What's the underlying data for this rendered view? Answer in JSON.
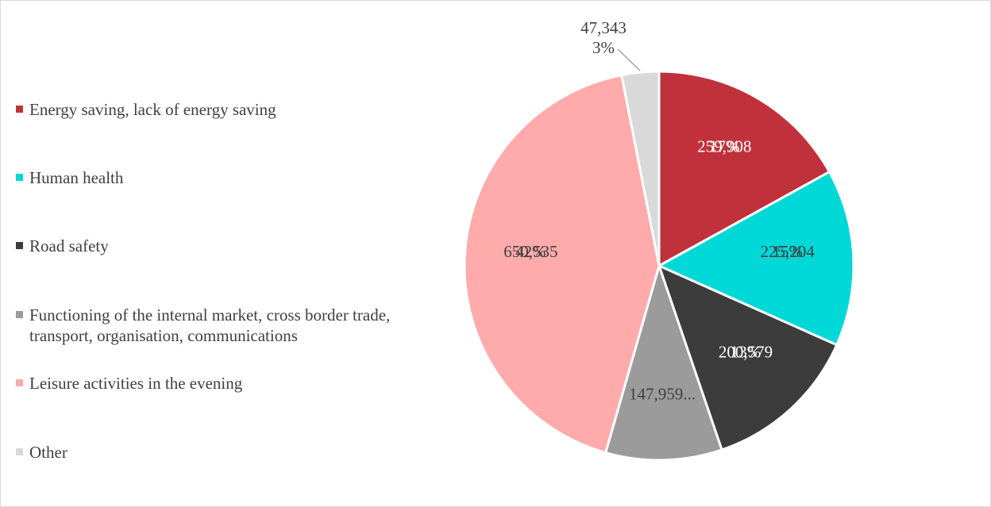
{
  "chart_data": {
    "type": "pie",
    "title": "",
    "legend_position": "left",
    "slices": [
      {
        "name": "Energy saving, lack of energy saving",
        "value": 259908,
        "value_label": "259,908",
        "pct_label": "17%",
        "color": "#c0313b",
        "label_color": "#ffffff"
      },
      {
        "name": "Human health",
        "value": 225204,
        "value_label": "225,204",
        "pct_label": "15%",
        "color": "#00d8d8",
        "label_color": "#404040"
      },
      {
        "name": "Road safety",
        "value": 200579,
        "value_label": "200,579",
        "pct_label": "13%",
        "color": "#3c3c3c",
        "label_color": "#ffffff"
      },
      {
        "name": "Functioning of the internal market, cross border trade, transport, organisation, communications",
        "value": 147959,
        "value_label": "147,959...",
        "pct_label": "",
        "color": "#9b9b9b",
        "label_color": "#404040"
      },
      {
        "name": "Leisure activities in the evening",
        "value": 650535,
        "value_label": "650,535",
        "pct_label": "42%",
        "color": "#ffabab",
        "label_color": "#404040"
      },
      {
        "name": "Other",
        "value": 47343,
        "value_label": "47,343",
        "pct_label": "3%",
        "color": "#d9d9d9",
        "label_color": "#404040"
      }
    ]
  }
}
